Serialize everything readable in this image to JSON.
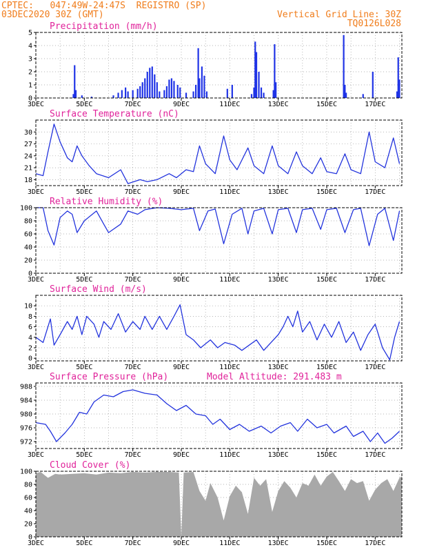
{
  "header": {
    "line1": "CPTEC:   047:49W-24:47S  REGISTRO (SP)",
    "line2": "03DEC2020 30Z (GMT)",
    "vgrid": "Vertical Grid Line: 30Z",
    "code": "TQ0126L028"
  },
  "colors": {
    "header": "#f07c1a",
    "title": "#e0229a",
    "series": "#2233dd",
    "bar": "#1f33e6",
    "cloud": "#a8a8a8"
  },
  "x_axis": {
    "labels": [
      "3DEC",
      "5DEC",
      "7DEC",
      "9DEC",
      "11DEC",
      "13DEC",
      "15DEC",
      "17DEC"
    ],
    "label_days": [
      3,
      5,
      7,
      9,
      11,
      13,
      15,
      17
    ],
    "range_days": [
      3,
      18.1
    ]
  },
  "chart_data": [
    {
      "type": "bar",
      "title": "Precipitation (mm/h)",
      "ylim": [
        0,
        5
      ],
      "yticks": [
        0,
        1,
        2,
        3,
        4,
        5
      ],
      "points": [
        [
          4.55,
          0.3
        ],
        [
          4.6,
          2.5
        ],
        [
          4.65,
          0.6
        ],
        [
          4.9,
          0.2
        ],
        [
          5.3,
          0.1
        ],
        [
          6.2,
          0.2
        ],
        [
          6.4,
          0.4
        ],
        [
          6.55,
          0.6
        ],
        [
          6.7,
          0.8
        ],
        [
          6.8,
          0.5
        ],
        [
          7.0,
          0.6
        ],
        [
          7.2,
          0.7
        ],
        [
          7.3,
          0.9
        ],
        [
          7.4,
          1.2
        ],
        [
          7.5,
          1.5
        ],
        [
          7.6,
          2.0
        ],
        [
          7.7,
          2.3
        ],
        [
          7.8,
          2.4
        ],
        [
          7.9,
          1.8
        ],
        [
          8.0,
          1.2
        ],
        [
          8.1,
          0.5
        ],
        [
          8.3,
          0.6
        ],
        [
          8.4,
          0.9
        ],
        [
          8.5,
          1.4
        ],
        [
          8.6,
          1.5
        ],
        [
          8.7,
          1.3
        ],
        [
          8.85,
          1.0
        ],
        [
          8.95,
          0.8
        ],
        [
          9.2,
          0.4
        ],
        [
          9.5,
          0.5
        ],
        [
          9.6,
          1.0
        ],
        [
          9.7,
          3.8
        ],
        [
          9.75,
          1.5
        ],
        [
          9.85,
          2.4
        ],
        [
          9.95,
          1.7
        ],
        [
          10.05,
          0.5
        ],
        [
          10.9,
          0.7
        ],
        [
          11.1,
          1.0
        ],
        [
          11.9,
          0.3
        ],
        [
          12.0,
          0.8
        ],
        [
          12.05,
          4.3
        ],
        [
          12.1,
          3.5
        ],
        [
          12.2,
          2.0
        ],
        [
          12.3,
          0.8
        ],
        [
          12.4,
          0.4
        ],
        [
          12.8,
          0.6
        ],
        [
          12.85,
          4.1
        ],
        [
          12.9,
          1.2
        ],
        [
          15.7,
          4.8
        ],
        [
          15.75,
          1.0
        ],
        [
          15.8,
          0.4
        ],
        [
          16.5,
          0.3
        ],
        [
          16.9,
          2.0
        ],
        [
          17.9,
          0.5
        ],
        [
          17.95,
          3.1
        ],
        [
          18.0,
          1.4
        ]
      ]
    },
    {
      "type": "line",
      "title": "Surface Temperature (nC)",
      "ylim": [
        16.5,
        33
      ],
      "yticks": [
        18,
        21,
        24,
        27,
        30
      ],
      "points": [
        [
          3.0,
          19.5
        ],
        [
          3.3,
          19.0
        ],
        [
          3.5,
          25.0
        ],
        [
          3.75,
          32.0
        ],
        [
          4.0,
          27.5
        ],
        [
          4.3,
          23.5
        ],
        [
          4.5,
          22.5
        ],
        [
          4.7,
          26.5
        ],
        [
          4.9,
          24.0
        ],
        [
          5.2,
          21.5
        ],
        [
          5.5,
          19.5
        ],
        [
          6.0,
          18.5
        ],
        [
          6.5,
          20.5
        ],
        [
          6.8,
          17.0
        ],
        [
          7.3,
          18.0
        ],
        [
          7.6,
          17.5
        ],
        [
          8.0,
          18.0
        ],
        [
          8.5,
          19.5
        ],
        [
          8.8,
          18.5
        ],
        [
          9.2,
          20.5
        ],
        [
          9.5,
          20.0
        ],
        [
          9.75,
          26.5
        ],
        [
          10.0,
          22.0
        ],
        [
          10.4,
          19.5
        ],
        [
          10.75,
          29.0
        ],
        [
          11.0,
          23.0
        ],
        [
          11.3,
          20.5
        ],
        [
          11.75,
          26.0
        ],
        [
          12.0,
          21.5
        ],
        [
          12.4,
          19.5
        ],
        [
          12.75,
          26.5
        ],
        [
          13.0,
          21.5
        ],
        [
          13.4,
          19.5
        ],
        [
          13.75,
          25.0
        ],
        [
          14.0,
          21.5
        ],
        [
          14.4,
          19.5
        ],
        [
          14.75,
          23.5
        ],
        [
          15.0,
          20.0
        ],
        [
          15.4,
          19.5
        ],
        [
          15.75,
          24.5
        ],
        [
          16.0,
          20.5
        ],
        [
          16.4,
          19.5
        ],
        [
          16.75,
          30.0
        ],
        [
          17.0,
          22.5
        ],
        [
          17.4,
          21.0
        ],
        [
          17.75,
          28.5
        ],
        [
          18.0,
          22.0
        ]
      ]
    },
    {
      "type": "line",
      "title": "Relative Humidity (%)",
      "ylim": [
        0,
        100
      ],
      "yticks": [
        0,
        20,
        40,
        60,
        80,
        100
      ],
      "points": [
        [
          3.0,
          100
        ],
        [
          3.3,
          100
        ],
        [
          3.5,
          65
        ],
        [
          3.75,
          43
        ],
        [
          4.0,
          85
        ],
        [
          4.3,
          95
        ],
        [
          4.5,
          90
        ],
        [
          4.7,
          62
        ],
        [
          5.0,
          80
        ],
        [
          5.5,
          95
        ],
        [
          5.8,
          75
        ],
        [
          6.0,
          62
        ],
        [
          6.5,
          75
        ],
        [
          6.8,
          95
        ],
        [
          7.2,
          90
        ],
        [
          7.5,
          97
        ],
        [
          8.0,
          100
        ],
        [
          8.5,
          99
        ],
        [
          9.0,
          97
        ],
        [
          9.5,
          99
        ],
        [
          9.75,
          65
        ],
        [
          10.1,
          95
        ],
        [
          10.4,
          98
        ],
        [
          10.75,
          45
        ],
        [
          11.1,
          90
        ],
        [
          11.5,
          99
        ],
        [
          11.75,
          60
        ],
        [
          12.0,
          95
        ],
        [
          12.4,
          99
        ],
        [
          12.75,
          60
        ],
        [
          13.0,
          97
        ],
        [
          13.4,
          99
        ],
        [
          13.75,
          62
        ],
        [
          14.0,
          97
        ],
        [
          14.4,
          99
        ],
        [
          14.75,
          67
        ],
        [
          15.0,
          97
        ],
        [
          15.4,
          99
        ],
        [
          15.75,
          62
        ],
        [
          16.1,
          97
        ],
        [
          16.4,
          99
        ],
        [
          16.75,
          42
        ],
        [
          17.1,
          90
        ],
        [
          17.4,
          99
        ],
        [
          17.75,
          50
        ],
        [
          18.0,
          95
        ]
      ]
    },
    {
      "type": "line",
      "title": "Surface Wind (m/s)",
      "ylim": [
        -0.5,
        12
      ],
      "yticks": [
        0,
        2,
        4,
        6,
        8,
        10
      ],
      "points": [
        [
          3.0,
          4.0
        ],
        [
          3.3,
          3.0
        ],
        [
          3.6,
          7.5
        ],
        [
          3.75,
          2.5
        ],
        [
          4.0,
          4.5
        ],
        [
          4.3,
          7.0
        ],
        [
          4.5,
          5.5
        ],
        [
          4.7,
          8.0
        ],
        [
          4.9,
          4.5
        ],
        [
          5.1,
          8.0
        ],
        [
          5.4,
          6.5
        ],
        [
          5.6,
          4.0
        ],
        [
          5.8,
          7.0
        ],
        [
          6.1,
          5.5
        ],
        [
          6.4,
          8.5
        ],
        [
          6.7,
          5.0
        ],
        [
          7.0,
          7.0
        ],
        [
          7.3,
          5.5
        ],
        [
          7.5,
          8.0
        ],
        [
          7.8,
          5.5
        ],
        [
          8.1,
          8.0
        ],
        [
          8.4,
          5.5
        ],
        [
          8.7,
          8.0
        ],
        [
          8.95,
          10.2
        ],
        [
          9.2,
          4.5
        ],
        [
          9.5,
          3.5
        ],
        [
          9.8,
          2.0
        ],
        [
          10.2,
          3.5
        ],
        [
          10.5,
          2.0
        ],
        [
          10.8,
          3.0
        ],
        [
          11.2,
          2.5
        ],
        [
          11.5,
          1.5
        ],
        [
          11.8,
          2.5
        ],
        [
          12.1,
          3.5
        ],
        [
          12.4,
          1.5
        ],
        [
          12.7,
          3.0
        ],
        [
          13.0,
          4.5
        ],
        [
          13.2,
          6.0
        ],
        [
          13.4,
          8.0
        ],
        [
          13.6,
          6.0
        ],
        [
          13.8,
          9.0
        ],
        [
          14.0,
          5.0
        ],
        [
          14.3,
          7.0
        ],
        [
          14.6,
          3.5
        ],
        [
          14.9,
          6.5
        ],
        [
          15.2,
          4.0
        ],
        [
          15.5,
          7.0
        ],
        [
          15.8,
          3.0
        ],
        [
          16.1,
          5.0
        ],
        [
          16.4,
          1.5
        ],
        [
          16.7,
          4.5
        ],
        [
          17.0,
          6.5
        ],
        [
          17.3,
          2.0
        ],
        [
          17.6,
          -0.3
        ],
        [
          17.8,
          4.0
        ],
        [
          18.0,
          7.0
        ]
      ]
    },
    {
      "type": "line",
      "title": "Surface Pressure (hPa)",
      "annotation": "Model Altitude: 291.483 m",
      "ylim": [
        970,
        989
      ],
      "yticks": [
        972,
        976,
        980,
        984,
        988
      ],
      "points": [
        [
          3.0,
          977.5
        ],
        [
          3.4,
          977.0
        ],
        [
          3.6,
          975.0
        ],
        [
          3.85,
          972.0
        ],
        [
          4.2,
          974.5
        ],
        [
          4.5,
          977.0
        ],
        [
          4.8,
          980.5
        ],
        [
          5.1,
          980.0
        ],
        [
          5.4,
          983.5
        ],
        [
          5.8,
          985.5
        ],
        [
          6.2,
          985.0
        ],
        [
          6.6,
          986.5
        ],
        [
          7.0,
          987.0
        ],
        [
          7.5,
          986.0
        ],
        [
          8.0,
          985.5
        ],
        [
          8.4,
          983.0
        ],
        [
          8.8,
          981.0
        ],
        [
          9.2,
          982.5
        ],
        [
          9.6,
          980.0
        ],
        [
          10.0,
          979.5
        ],
        [
          10.3,
          977.0
        ],
        [
          10.6,
          978.5
        ],
        [
          11.0,
          975.5
        ],
        [
          11.4,
          977.0
        ],
        [
          11.8,
          975.0
        ],
        [
          12.3,
          976.5
        ],
        [
          12.7,
          974.5
        ],
        [
          13.1,
          976.5
        ],
        [
          13.5,
          977.5
        ],
        [
          13.8,
          975.0
        ],
        [
          14.2,
          978.5
        ],
        [
          14.6,
          976.0
        ],
        [
          15.0,
          977.0
        ],
        [
          15.3,
          974.5
        ],
        [
          15.8,
          976.5
        ],
        [
          16.1,
          973.5
        ],
        [
          16.5,
          975.0
        ],
        [
          16.8,
          972.0
        ],
        [
          17.1,
          974.5
        ],
        [
          17.4,
          971.5
        ],
        [
          17.7,
          973.0
        ],
        [
          18.0,
          975.0
        ]
      ]
    },
    {
      "type": "area",
      "title": "Cloud Cover (%)",
      "ylim": [
        0,
        100
      ],
      "yticks": [
        0,
        20,
        40,
        60,
        80,
        100
      ],
      "points": [
        [
          3.0,
          97
        ],
        [
          3.2,
          99
        ],
        [
          3.5,
          90
        ],
        [
          3.8,
          96
        ],
        [
          4.0,
          95
        ],
        [
          4.5,
          96
        ],
        [
          5.0,
          97
        ],
        [
          5.5,
          95
        ],
        [
          6.0,
          98
        ],
        [
          6.5,
          97
        ],
        [
          7.0,
          99
        ],
        [
          7.5,
          98
        ],
        [
          8.0,
          99
        ],
        [
          8.5,
          99
        ],
        [
          8.9,
          98
        ],
        [
          9.0,
          0
        ],
        [
          9.1,
          98
        ],
        [
          9.5,
          99
        ],
        [
          9.75,
          70
        ],
        [
          10.0,
          55
        ],
        [
          10.2,
          82
        ],
        [
          10.5,
          60
        ],
        [
          10.75,
          25
        ],
        [
          11.0,
          62
        ],
        [
          11.25,
          78
        ],
        [
          11.5,
          68
        ],
        [
          11.75,
          35
        ],
        [
          12.0,
          90
        ],
        [
          12.25,
          78
        ],
        [
          12.5,
          88
        ],
        [
          12.75,
          38
        ],
        [
          13.0,
          70
        ],
        [
          13.25,
          85
        ],
        [
          13.5,
          75
        ],
        [
          13.75,
          60
        ],
        [
          14.0,
          82
        ],
        [
          14.25,
          78
        ],
        [
          14.5,
          95
        ],
        [
          14.75,
          78
        ],
        [
          15.0,
          92
        ],
        [
          15.25,
          99
        ],
        [
          15.5,
          85
        ],
        [
          15.75,
          70
        ],
        [
          16.0,
          88
        ],
        [
          16.25,
          82
        ],
        [
          16.5,
          85
        ],
        [
          16.75,
          55
        ],
        [
          17.0,
          72
        ],
        [
          17.25,
          82
        ],
        [
          17.5,
          88
        ],
        [
          17.75,
          70
        ],
        [
          18.0,
          90
        ],
        [
          18.1,
          92
        ]
      ]
    }
  ]
}
